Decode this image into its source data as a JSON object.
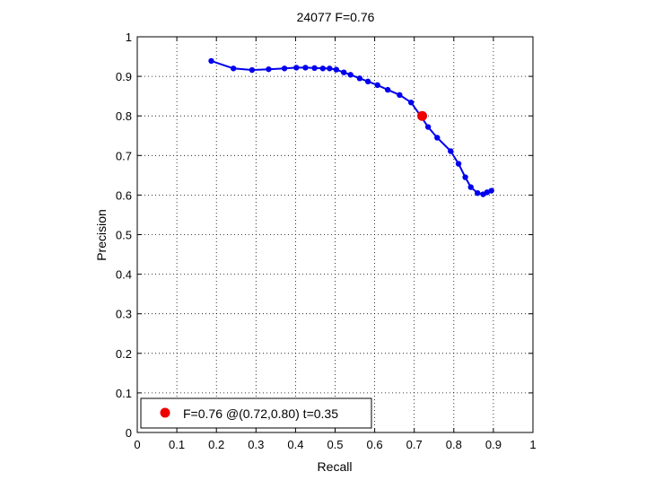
{
  "chart_data": {
    "type": "line",
    "title": "24077 F=0.76",
    "xlabel": "Recall",
    "ylabel": "Precision",
    "xlim": [
      0,
      1
    ],
    "ylim": [
      0,
      1
    ],
    "xticks": [
      "0",
      "0.1",
      "0.2",
      "0.3",
      "0.4",
      "0.5",
      "0.6",
      "0.7",
      "0.8",
      "0.9",
      "1"
    ],
    "yticks": [
      "0",
      "0.1",
      "0.2",
      "0.3",
      "0.4",
      "0.5",
      "0.6",
      "0.7",
      "0.8",
      "0.9",
      "1"
    ],
    "grid": true,
    "legend_position": "bottom-left",
    "series": [
      {
        "color": "#0000ee",
        "marker": "dot",
        "points": [
          [
            0.187,
            0.939
          ],
          [
            0.243,
            0.92
          ],
          [
            0.29,
            0.916
          ],
          [
            0.332,
            0.918
          ],
          [
            0.372,
            0.92
          ],
          [
            0.402,
            0.922
          ],
          [
            0.425,
            0.922
          ],
          [
            0.448,
            0.921
          ],
          [
            0.469,
            0.92
          ],
          [
            0.486,
            0.92
          ],
          [
            0.503,
            0.917
          ],
          [
            0.522,
            0.91
          ],
          [
            0.539,
            0.904
          ],
          [
            0.562,
            0.895
          ],
          [
            0.583,
            0.887
          ],
          [
            0.607,
            0.878
          ],
          [
            0.633,
            0.866
          ],
          [
            0.663,
            0.853
          ],
          [
            0.692,
            0.834
          ],
          [
            0.716,
            0.8
          ],
          [
            0.735,
            0.772
          ],
          [
            0.758,
            0.745
          ],
          [
            0.792,
            0.711
          ],
          [
            0.812,
            0.679
          ],
          [
            0.829,
            0.645
          ],
          [
            0.843,
            0.62
          ],
          [
            0.86,
            0.605
          ],
          [
            0.874,
            0.602
          ],
          [
            0.884,
            0.607
          ],
          [
            0.895,
            0.611
          ]
        ]
      }
    ],
    "highlight": {
      "x": 0.72,
      "y": 0.8,
      "color": "#ee0000"
    },
    "legend_label": "F=0.76 @(0.72,0.80) t=0.35"
  }
}
